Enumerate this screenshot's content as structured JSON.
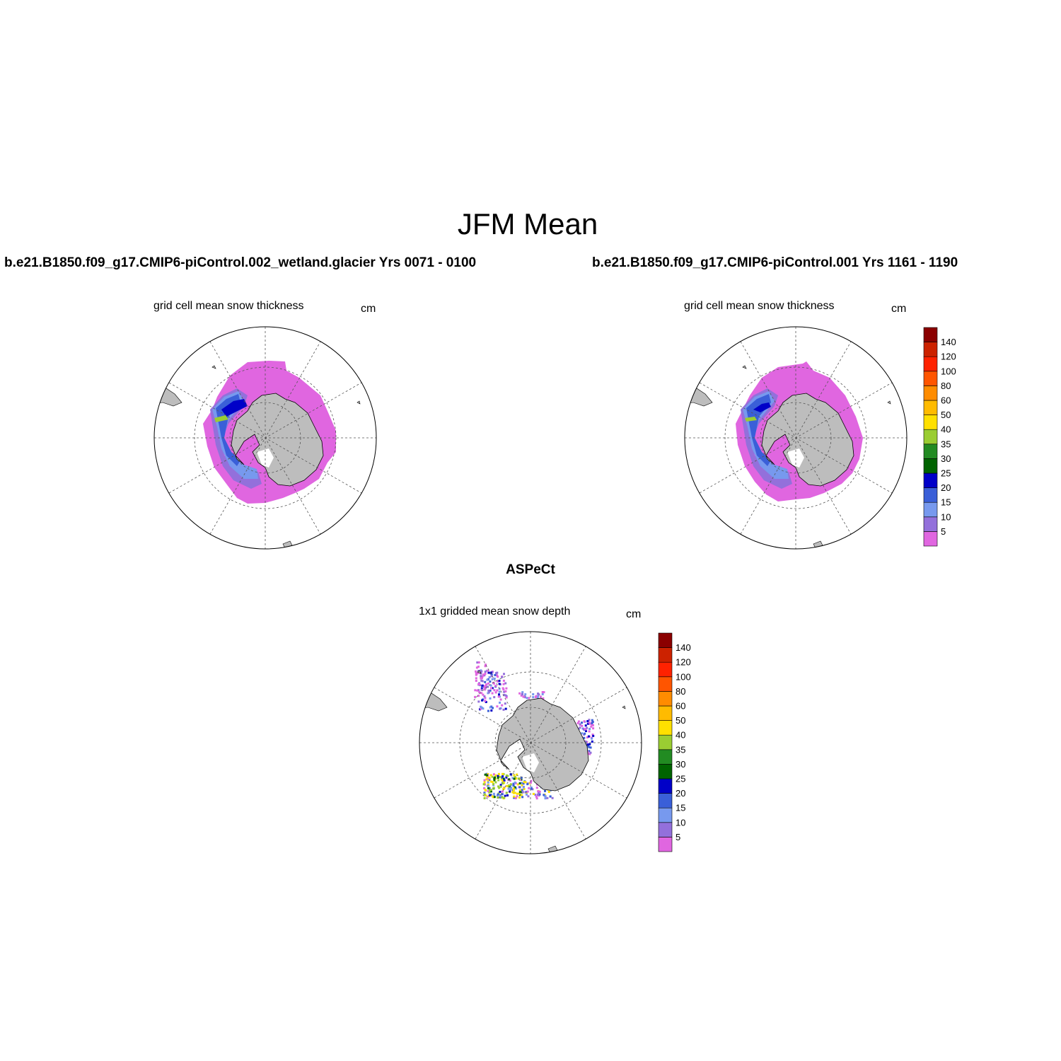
{
  "title": "JFM Mean",
  "panels": [
    {
      "run": "b.e21.B1850.f09_g17.CMIP6-piControl.002_wetland.glacier  Yrs 0071 - 0100",
      "subtitle": "grid cell mean snow thickness",
      "units": "cm"
    },
    {
      "run": "b.e21.B1850.f09_g17.CMIP6-piControl.001  Yrs 1161 - 1190",
      "subtitle": "grid cell mean snow thickness",
      "units": "cm"
    }
  ],
  "obs": {
    "title": "ASPeCt",
    "subtitle": "1x1 gridded mean snow depth",
    "units": "cm"
  },
  "colorbar": {
    "labels": [
      "5",
      "10",
      "15",
      "20",
      "25",
      "30",
      "35",
      "40",
      "50",
      "60",
      "80",
      "100",
      "120",
      "140"
    ],
    "colors": [
      "#e066e0",
      "#9370db",
      "#7799ee",
      "#3a5fd8",
      "#0000c8",
      "#006400",
      "#228b22",
      "#9acd32",
      "#ffe000",
      "#ffbb00",
      "#ff8c00",
      "#ff5500",
      "#ff2200",
      "#cc2200",
      "#8b0000"
    ]
  },
  "chart_data": [
    {
      "type": "map",
      "title": "b.e21.B1850.f09_g17.CMIP6-piControl.002_wetland.glacier  Yrs 0071 - 0100",
      "variable": "grid cell mean snow thickness",
      "units": "cm",
      "projection": "south polar stereographic",
      "contour_levels": [
        5,
        10,
        15,
        20,
        25,
        30,
        35,
        40,
        50,
        60,
        80,
        100,
        120,
        140
      ],
      "grid": true
    },
    {
      "type": "map",
      "title": "b.e21.B1850.f09_g17.CMIP6-piControl.001  Yrs 1161 - 1190",
      "variable": "grid cell mean snow thickness",
      "units": "cm",
      "projection": "south polar stereographic",
      "contour_levels": [
        5,
        10,
        15,
        20,
        25,
        30,
        35,
        40,
        50,
        60,
        80,
        100,
        120,
        140
      ],
      "grid": true
    },
    {
      "type": "map",
      "title": "ASPeCt",
      "variable": "1x1 gridded mean snow depth",
      "units": "cm",
      "projection": "south polar stereographic",
      "contour_levels": [
        5,
        10,
        15,
        20,
        25,
        30,
        35,
        40,
        50,
        60,
        80,
        100,
        120,
        140
      ],
      "grid": true
    }
  ]
}
